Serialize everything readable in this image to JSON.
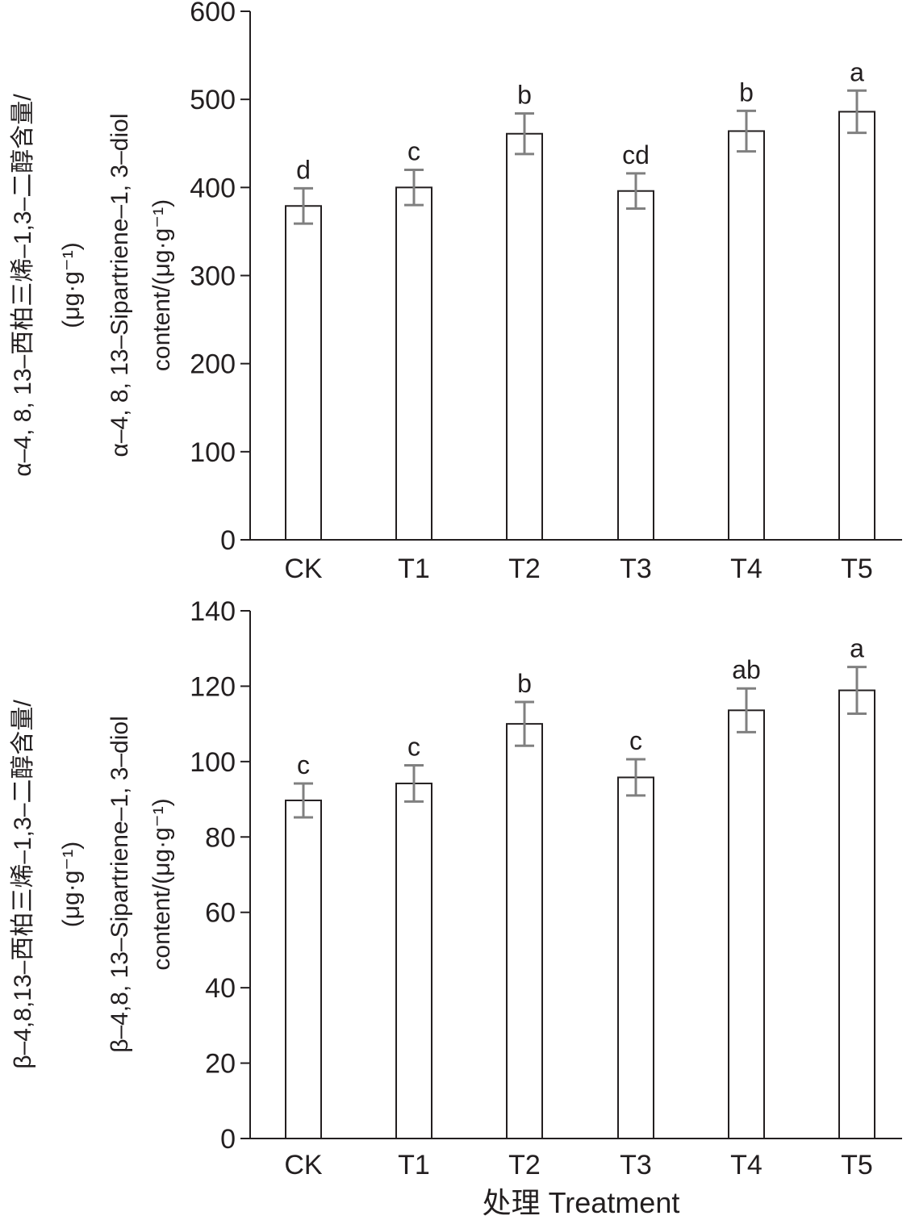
{
  "xlabel": "处理 Treatment",
  "chart_data": [
    {
      "type": "bar",
      "categories": [
        "CK",
        "T1",
        "T2",
        "T3",
        "T4",
        "T5"
      ],
      "values": [
        379,
        400,
        461,
        396,
        464,
        486
      ],
      "errors": [
        20,
        20,
        23,
        20,
        23,
        24
      ],
      "letters": [
        "d",
        "c",
        "b",
        "cd",
        "b",
        "a"
      ],
      "ylim": [
        0,
        600
      ],
      "yticks": [
        0,
        100,
        200,
        300,
        400,
        500,
        600
      ],
      "ylabel_lines": [
        "α–4, 8, 13–西柏三烯–1,3–二醇含量/",
        "(μg·g⁻¹)",
        "α–4, 8, 13–Sipartriene–1, 3–diol",
        "content/(μg·g⁻¹)"
      ],
      "bar_color": "#ffffff",
      "errorbar_color": "#808080"
    },
    {
      "type": "bar",
      "categories": [
        "CK",
        "T1",
        "T2",
        "T3",
        "T4",
        "T5"
      ],
      "values": [
        89.7,
        94.2,
        110,
        95.8,
        113.6,
        118.9
      ],
      "errors": [
        4.5,
        4.8,
        5.8,
        4.8,
        5.8,
        6.2
      ],
      "letters": [
        "c",
        "c",
        "b",
        "c",
        "ab",
        "a"
      ],
      "ylim": [
        0,
        140
      ],
      "yticks": [
        0,
        20,
        40,
        60,
        80,
        100,
        120,
        140
      ],
      "ylabel_lines": [
        "β–4,8,13–西柏三烯–1,3–二醇含量/",
        "(μg·g⁻¹)",
        "β–4,8, 13–Sipartriene–1, 3–diol",
        "content/(μg·g⁻¹)"
      ],
      "bar_color": "#ffffff",
      "errorbar_color": "#808080"
    }
  ]
}
